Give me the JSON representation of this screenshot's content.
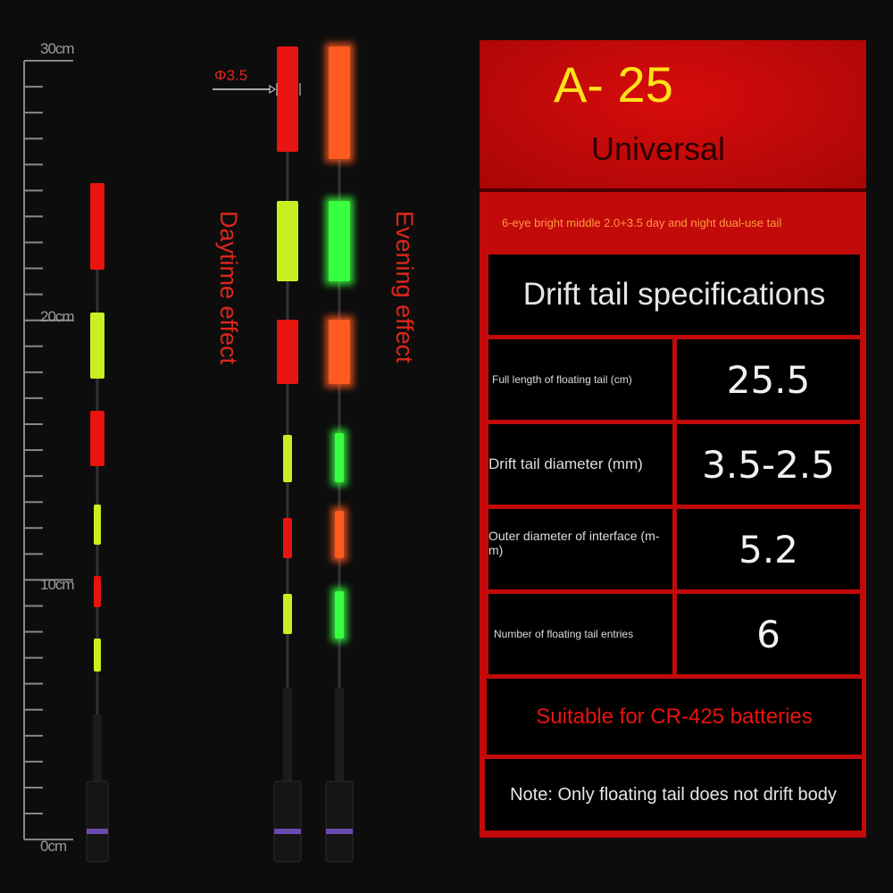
{
  "ruler": {
    "labels": [
      "30cm",
      "20cm",
      "10cm",
      "0cm"
    ]
  },
  "annotations": {
    "diameter": "Φ3.5",
    "day": "Daytime effect",
    "evening": "Evening effect"
  },
  "panel": {
    "model": "A- 25",
    "subtitle": "Universal",
    "tagline": "6-eye bright middle 2.0+3.5 day and night dual-use tail",
    "spec_title": "Drift tail specifications",
    "specs": [
      {
        "label": "Full length of floating tail (cm)",
        "value": "25.5"
      },
      {
        "label": "Drift tail diameter (mm)",
        "value": "3.5-2.5"
      },
      {
        "label": "Outer diameter of interface (m-m)",
        "value": "5.2"
      },
      {
        "label": "Number of floating tail entries",
        "value": "6"
      }
    ],
    "battery": "Suitable for CR-425 batteries",
    "note": "Note: Only floating tail does not drift body"
  },
  "colors": {
    "red": "#e8140f",
    "yellow": "#c8f020",
    "glow_orange": "#ff5a20",
    "glow_green": "#38ff40",
    "panel_red": "#c20a0a",
    "model_yellow": "#ffe21a"
  }
}
